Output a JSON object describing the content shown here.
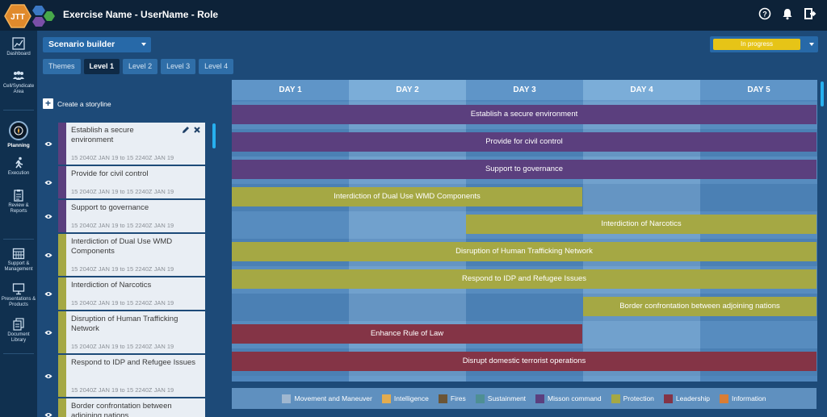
{
  "app": {
    "logo_text": "JTT",
    "title": "Exercise Name - UserName - Role"
  },
  "colors": {
    "topbar": "#0d2238",
    "sidebar": "#10304f",
    "background": "#1d4a78",
    "mission_command": "#5b3f7e",
    "protection": "#a5a844",
    "leadership": "#843446",
    "in_progress": "#e6c417"
  },
  "nav": [
    {
      "label": "Dashboard",
      "icon": "dashboard-icon"
    },
    {
      "label": "Cell/Syndicate Area",
      "icon": "people-icon"
    },
    {
      "label": "Planning",
      "icon": "compass-icon"
    },
    {
      "label": "Execution",
      "icon": "runner-icon"
    },
    {
      "label": "Review & Reports",
      "icon": "report-icon"
    },
    {
      "label": "Support & Management",
      "icon": "calendar-grid-icon"
    },
    {
      "label": "Presentations & Products",
      "icon": "monitor-icon"
    },
    {
      "label": "Document Library",
      "icon": "documents-icon"
    }
  ],
  "scenario": {
    "label": "Scenario builder"
  },
  "status": {
    "label": "In progress"
  },
  "tabs": [
    "Themes",
    "Level 1",
    "Level 2",
    "Level 3",
    "Level 4"
  ],
  "create_storyline": "Create a storyline",
  "stories": [
    {
      "title": "Establish a secure environment",
      "dates": "15 2040Z JAN 19   to   15 2240Z JAN 19",
      "color": "#5b3f7e"
    },
    {
      "title": "Provide for civil control",
      "dates": "15 2040Z JAN 19   to   15 2240Z JAN 19",
      "color": "#5b3f7e"
    },
    {
      "title": "Support to governance",
      "dates": "15 2040Z JAN 19   to   15 2240Z JAN 19",
      "color": "#5b3f7e"
    },
    {
      "title": "Interdiction of Dual Use WMD Components",
      "dates": "15 2040Z JAN 19   to   15 2240Z JAN 19",
      "color": "#a5a844"
    },
    {
      "title": "Interdiction of Narcotics",
      "dates": "15 2040Z JAN 19   to   15 2240Z JAN 19",
      "color": "#a5a844"
    },
    {
      "title": "Disruption of Human Trafficking Network",
      "dates": "15 2040Z JAN 19   to   15 2240Z JAN 19",
      "color": "#a5a844"
    },
    {
      "title": "Respond to IDP and Refugee Issues",
      "dates": "15 2040Z JAN 19   to   15 2240Z JAN 19",
      "color": "#a5a844"
    },
    {
      "title": "Border confrontation between adjoining nations",
      "dates": "",
      "color": "#a5a844"
    }
  ],
  "days": [
    "DAY 1",
    "DAY 2",
    "DAY 3",
    "DAY 4",
    "DAY 5"
  ],
  "bars": [
    {
      "label": "Establish a secure environment",
      "start_day": 1,
      "end_day": 5,
      "color": "#5b3f7e"
    },
    {
      "label": "Provide for civil control",
      "start_day": 1,
      "end_day": 5,
      "color": "#5b3f7e"
    },
    {
      "label": "Support to governance",
      "start_day": 1,
      "end_day": 5,
      "color": "#5b3f7e"
    },
    {
      "label": "Interdiction of Dual Use WMD Components",
      "start_day": 1,
      "end_day": 3,
      "color": "#a5a844"
    },
    {
      "label": "Interdiction of Narcotics",
      "start_day": 3,
      "end_day": 5,
      "color": "#a5a844"
    },
    {
      "label": "Disruption of Human Trafficking Network",
      "start_day": 1,
      "end_day": 5,
      "color": "#a5a844"
    },
    {
      "label": "Respond to IDP and Refugee Issues",
      "start_day": 1,
      "end_day": 5,
      "color": "#a5a844"
    },
    {
      "label": "Border confrontation between adjoining nations",
      "start_day": 4,
      "end_day": 5,
      "color": "#a5a844"
    },
    {
      "label": "Enhance Rule of Law",
      "start_day": 1,
      "end_day": 3,
      "color": "#843446"
    },
    {
      "label": "Disrupt domestic terrorist operations",
      "start_day": 1,
      "end_day": 5,
      "color": "#843446"
    }
  ],
  "legend": [
    {
      "label": "Movement and Maneuver",
      "color": "#9fb7d0"
    },
    {
      "label": "Intelligence",
      "color": "#e3ac4f"
    },
    {
      "label": "Fires",
      "color": "#6b5536"
    },
    {
      "label": "Sustainment",
      "color": "#4e8f93"
    },
    {
      "label": "Misson command",
      "color": "#5b3f7e"
    },
    {
      "label": "Protection",
      "color": "#a5a844"
    },
    {
      "label": "Leadership",
      "color": "#843446"
    },
    {
      "label": "Information",
      "color": "#d97d34"
    }
  ]
}
